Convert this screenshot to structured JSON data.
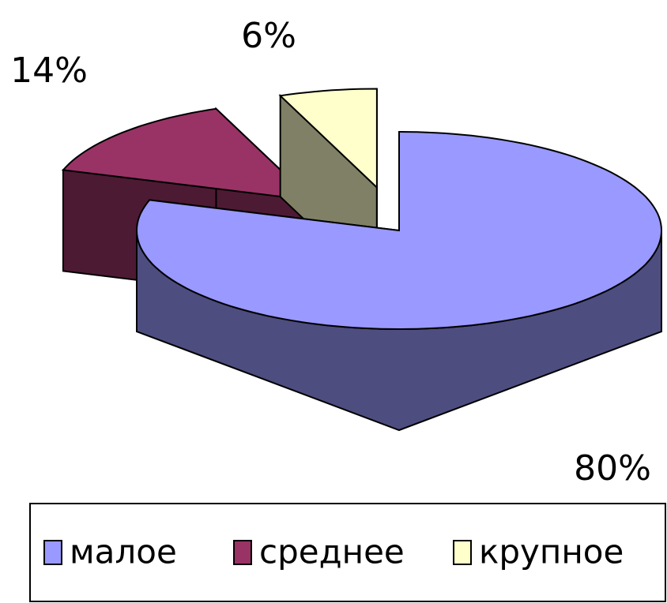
{
  "chart_data": {
    "type": "pie",
    "categories": [
      "малое",
      "среднее",
      "крупное"
    ],
    "values": [
      80,
      14,
      6
    ],
    "value_labels": [
      "80%",
      "14%",
      "6%"
    ],
    "colors": [
      "#9999ff",
      "#993366",
      "#ffffcc"
    ],
    "legend": "bottom"
  }
}
